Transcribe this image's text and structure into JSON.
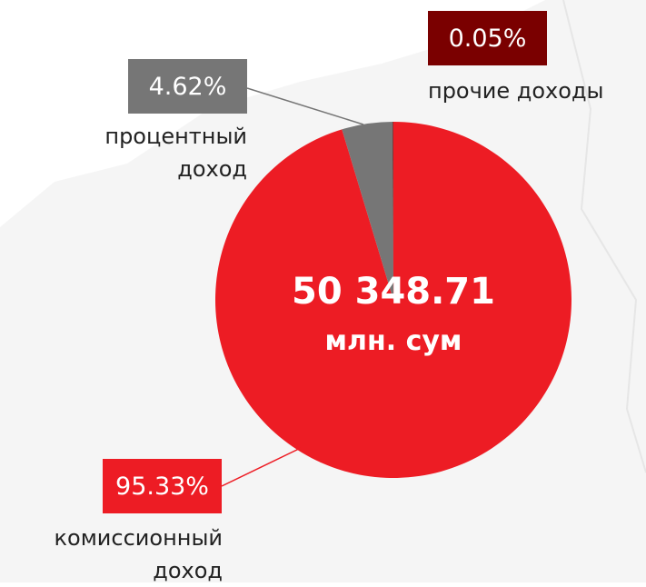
{
  "chart_data": {
    "type": "pie",
    "categories": [
      "комиссионный доход",
      "процентный доход",
      "прочие доходы"
    ],
    "values": [
      95.33,
      4.62,
      0.05
    ],
    "value_labels": [
      "95.33%",
      "4.62%",
      "0.05%"
    ],
    "colors": [
      "#ed1c24",
      "#767676",
      "#7a0000"
    ],
    "total": "50 348.71",
    "unit": "млн. сум"
  }
}
